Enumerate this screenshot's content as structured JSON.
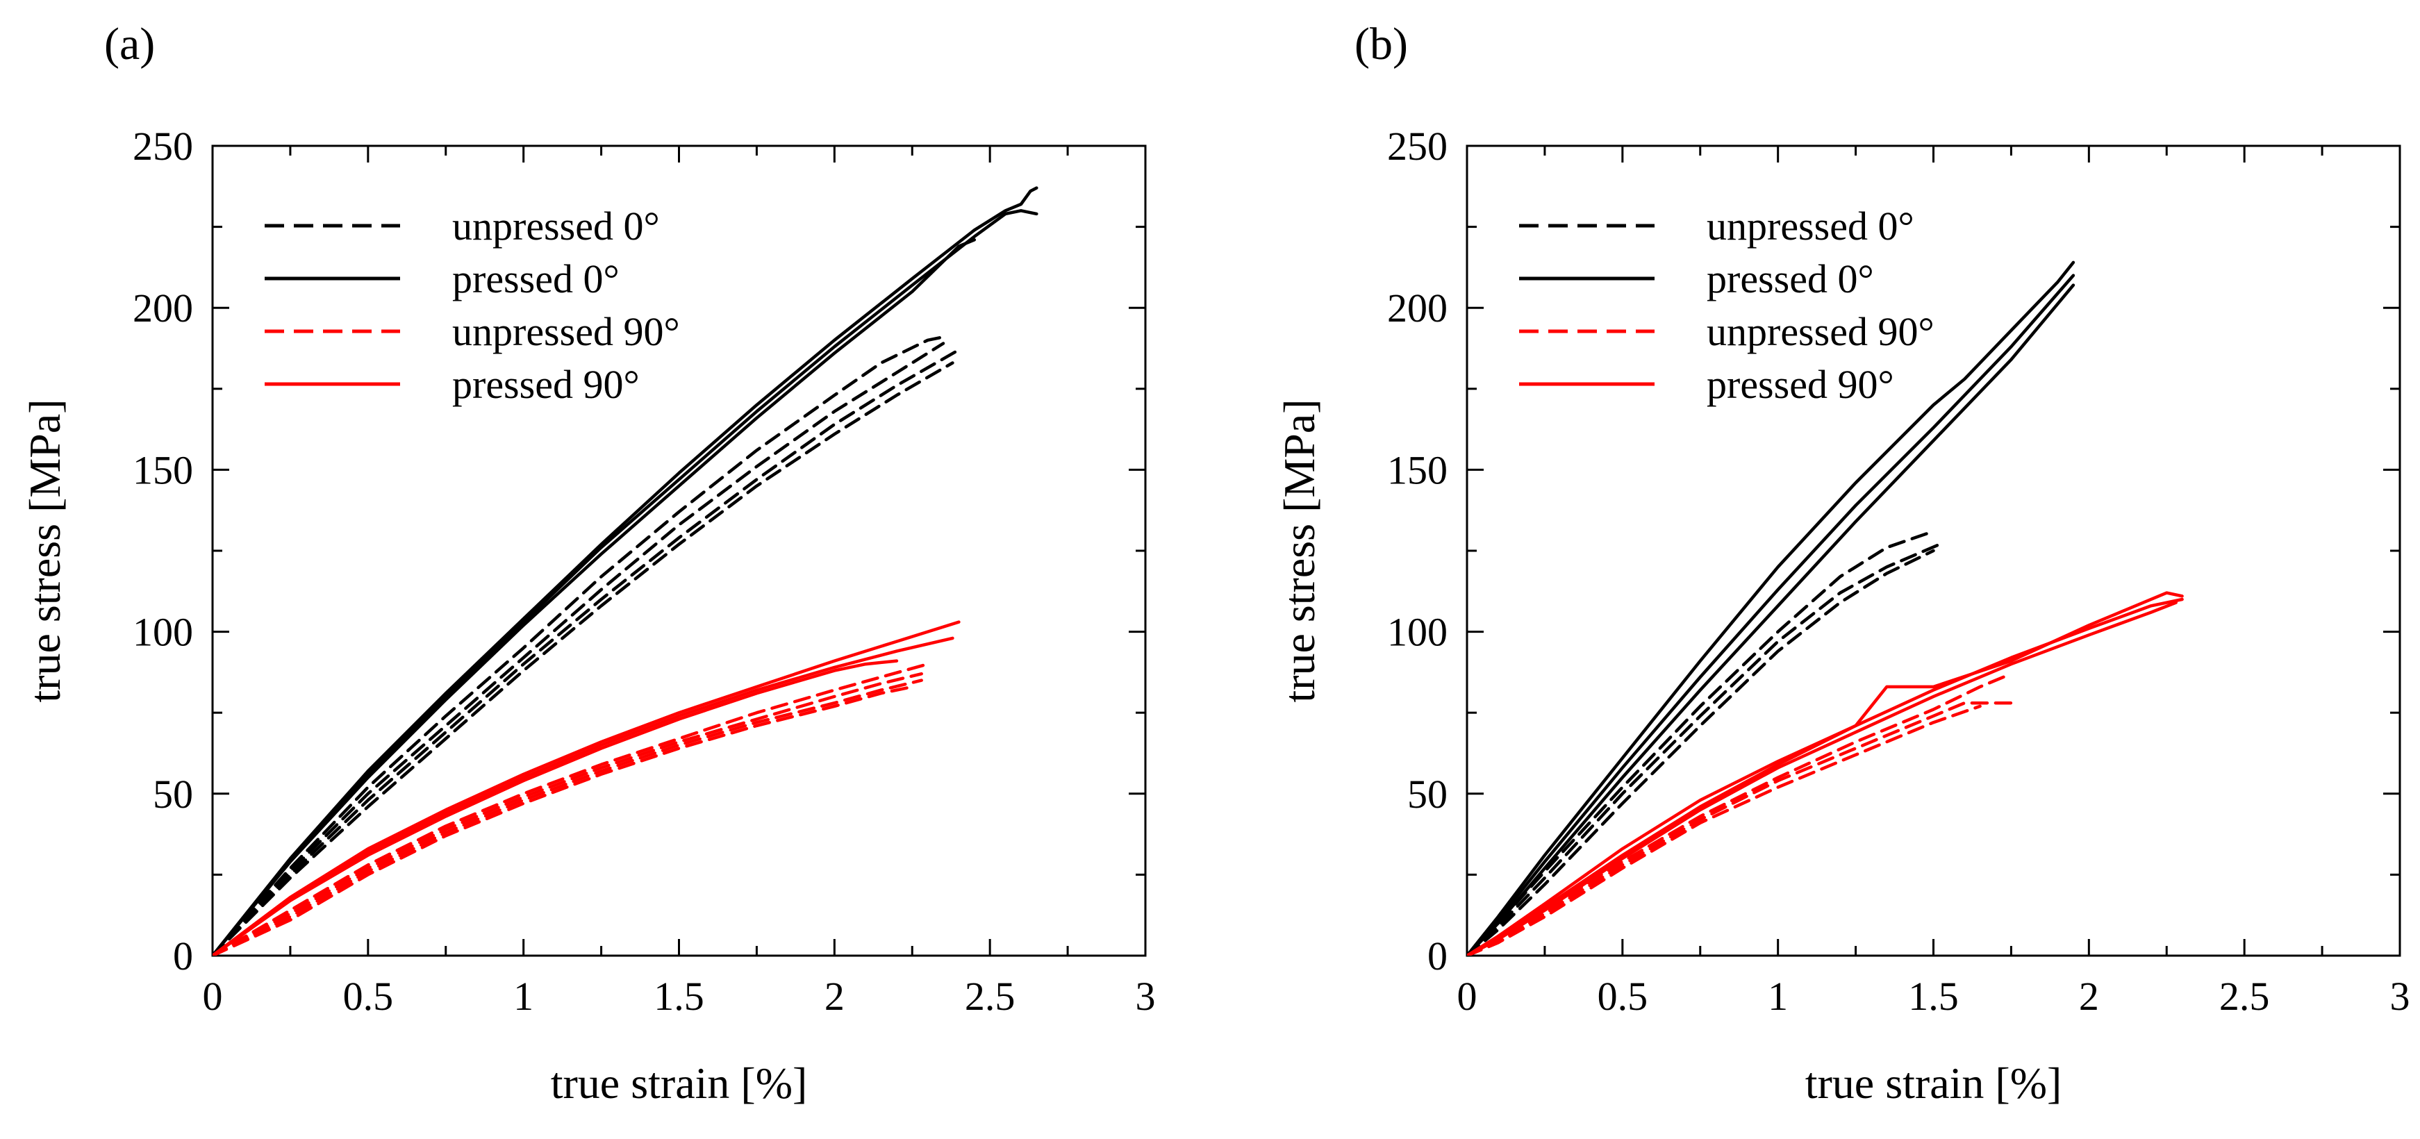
{
  "colors": {
    "black": "#000000",
    "red": "#ff0000",
    "background": "#ffffff"
  },
  "chart_data": [
    {
      "type": "line",
      "panel_label": "(a)",
      "xlabel": "true strain [%]",
      "ylabel": "true stress [MPa]",
      "xlim": [
        0,
        3
      ],
      "ylim": [
        0,
        250
      ],
      "xticks": [
        0,
        0.5,
        1,
        1.5,
        2,
        2.5,
        3
      ],
      "xtick_labels": [
        "0",
        "0.5",
        "1",
        "1.5",
        "2",
        "2.5",
        "3"
      ],
      "yticks": [
        0,
        50,
        100,
        150,
        200,
        250
      ],
      "ytick_labels": [
        "0",
        "50",
        "100",
        "150",
        "200",
        "250"
      ],
      "grid": false,
      "legend_position": "top-left",
      "legend": [
        {
          "label": "unpressed 0°",
          "color": "#000000",
          "style": "dashed"
        },
        {
          "label": "pressed 0°",
          "color": "#000000",
          "style": "solid"
        },
        {
          "label": "unpressed 90°",
          "color": "#ff0000",
          "style": "dashed"
        },
        {
          "label": "pressed 90°",
          "color": "#ff0000",
          "style": "solid"
        }
      ],
      "series": [
        {
          "group": "pressed 0°",
          "color": "#000000",
          "style": "solid",
          "x": [
            0,
            0.25,
            0.5,
            0.75,
            1.0,
            1.25,
            1.5,
            1.75,
            2.0,
            2.25,
            2.45,
            2.55,
            2.6,
            2.63,
            2.65
          ],
          "y": [
            0,
            30,
            57,
            81,
            104,
            127,
            149,
            170,
            190,
            209,
            224,
            230,
            232,
            236,
            237
          ]
        },
        {
          "group": "pressed 0°",
          "color": "#000000",
          "style": "solid",
          "x": [
            0,
            0.25,
            0.5,
            0.75,
            1.0,
            1.25,
            1.5,
            1.75,
            2.0,
            2.25,
            2.45,
            2.55,
            2.6,
            2.65
          ],
          "y": [
            0,
            29,
            56,
            80,
            103,
            126,
            147,
            168,
            188,
            207,
            222,
            229,
            230,
            229
          ]
        },
        {
          "group": "pressed 0°",
          "color": "#000000",
          "style": "solid",
          "x": [
            0,
            0.25,
            0.5,
            0.75,
            1.0,
            1.25,
            1.5,
            1.75,
            2.0,
            2.25,
            2.4,
            2.45
          ],
          "y": [
            0,
            29,
            55,
            79,
            102,
            124,
            145,
            166,
            186,
            205,
            219,
            221
          ]
        },
        {
          "group": "unpressed 0°",
          "color": "#000000",
          "style": "dashed",
          "x": [
            0,
            0.25,
            0.5,
            0.75,
            1.0,
            1.25,
            1.5,
            1.75,
            2.0,
            2.15,
            2.3,
            2.35
          ],
          "y": [
            0,
            27,
            52,
            74,
            95,
            117,
            137,
            156,
            173,
            183,
            190,
            191
          ]
        },
        {
          "group": "unpressed 0°",
          "color": "#000000",
          "style": "dashed",
          "x": [
            0,
            0.25,
            0.5,
            0.75,
            1.0,
            1.25,
            1.5,
            1.75,
            2.0,
            2.2,
            2.35
          ],
          "y": [
            0,
            26,
            50,
            71,
            92,
            113,
            133,
            151,
            168,
            180,
            189
          ]
        },
        {
          "group": "unpressed 0°",
          "color": "#000000",
          "style": "dashed",
          "x": [
            0,
            0.25,
            0.5,
            0.75,
            1.0,
            1.25,
            1.5,
            1.75,
            2.0,
            2.2,
            2.4
          ],
          "y": [
            0,
            25,
            48,
            69,
            90,
            110,
            129,
            147,
            164,
            176,
            187
          ]
        },
        {
          "group": "unpressed 0°",
          "color": "#000000",
          "style": "dashed",
          "x": [
            0,
            0.25,
            0.5,
            0.75,
            1.0,
            1.25,
            1.5,
            1.75,
            2.0,
            2.2,
            2.38
          ],
          "y": [
            0,
            24,
            46,
            67,
            88,
            108,
            127,
            145,
            161,
            173,
            183
          ]
        },
        {
          "group": "pressed 90°",
          "color": "#ff0000",
          "style": "solid",
          "x": [
            0,
            0.25,
            0.5,
            0.75,
            1.0,
            1.25,
            1.5,
            1.75,
            2.0,
            2.2,
            2.4
          ],
          "y": [
            0,
            18,
            33,
            45,
            56,
            66,
            75,
            83,
            91,
            97,
            103
          ]
        },
        {
          "group": "pressed 90°",
          "color": "#ff0000",
          "style": "solid",
          "x": [
            0,
            0.25,
            0.5,
            0.75,
            1.0,
            1.25,
            1.5,
            1.75,
            2.0,
            2.2,
            2.38
          ],
          "y": [
            0,
            17,
            32,
            44,
            55,
            65,
            74,
            82,
            89,
            94,
            98
          ]
        },
        {
          "group": "pressed 90°",
          "color": "#ff0000",
          "style": "solid",
          "x": [
            0,
            0.25,
            0.5,
            0.75,
            1.0,
            1.25,
            1.5,
            1.75,
            2.0,
            2.1,
            2.2
          ],
          "y": [
            0,
            17,
            31,
            43,
            54,
            64,
            73,
            81,
            88,
            90,
            91
          ]
        },
        {
          "group": "unpressed 90°",
          "color": "#ff0000",
          "style": "dashed",
          "x": [
            0,
            0.25,
            0.5,
            0.75,
            1.0,
            1.25,
            1.5,
            1.75,
            2.0,
            2.15,
            2.3
          ],
          "y": [
            0,
            14,
            28,
            40,
            50,
            59,
            67,
            75,
            82,
            86,
            90
          ]
        },
        {
          "group": "unpressed 90°",
          "color": "#ff0000",
          "style": "dashed",
          "x": [
            0,
            0.25,
            0.5,
            0.75,
            1.0,
            1.25,
            1.5,
            1.75,
            2.0,
            2.15,
            2.28
          ],
          "y": [
            0,
            13,
            27,
            39,
            49,
            58,
            66,
            73,
            80,
            84,
            87
          ]
        },
        {
          "group": "unpressed 90°",
          "color": "#ff0000",
          "style": "dashed",
          "x": [
            0,
            0.25,
            0.5,
            0.75,
            1.0,
            1.25,
            1.5,
            1.75,
            2.0,
            2.15,
            2.28
          ],
          "y": [
            0,
            12,
            26,
            38,
            48,
            57,
            65,
            72,
            78,
            82,
            85
          ]
        },
        {
          "group": "unpressed 90°",
          "color": "#ff0000",
          "style": "dashed",
          "x": [
            0,
            0.25,
            0.5,
            0.75,
            1.0,
            1.25,
            1.5,
            1.75,
            2.0,
            2.15,
            2.25
          ],
          "y": [
            0,
            11,
            25,
            37,
            47,
            56,
            64,
            71,
            77,
            81,
            83
          ]
        }
      ]
    },
    {
      "type": "line",
      "panel_label": "(b)",
      "xlabel": "true strain [%]",
      "ylabel": "true stress [MPa]",
      "xlim": [
        0,
        3
      ],
      "ylim": [
        0,
        250
      ],
      "xticks": [
        0,
        0.5,
        1,
        1.5,
        2,
        2.5,
        3
      ],
      "xtick_labels": [
        "0",
        "0.5",
        "1",
        "1.5",
        "2",
        "2.5",
        "3"
      ],
      "yticks": [
        0,
        50,
        100,
        150,
        200,
        250
      ],
      "ytick_labels": [
        "0",
        "50",
        "100",
        "150",
        "200",
        "250"
      ],
      "grid": false,
      "legend_position": "top-left",
      "legend": [
        {
          "label": "unpressed 0°",
          "color": "#000000",
          "style": "dashed"
        },
        {
          "label": "pressed 0°",
          "color": "#000000",
          "style": "solid"
        },
        {
          "label": "unpressed 90°",
          "color": "#ff0000",
          "style": "dashed"
        },
        {
          "label": "pressed 90°",
          "color": "#ff0000",
          "style": "solid"
        }
      ],
      "series": [
        {
          "group": "pressed 0°",
          "color": "#000000",
          "style": "solid",
          "x": [
            0,
            0.1,
            0.25,
            0.5,
            0.75,
            1.0,
            1.25,
            1.5,
            1.6,
            1.75,
            1.9,
            1.95
          ],
          "y": [
            0,
            12,
            31,
            61,
            91,
            120,
            146,
            170,
            178,
            193,
            208,
            214
          ]
        },
        {
          "group": "pressed 0°",
          "color": "#000000",
          "style": "solid",
          "x": [
            0,
            0.1,
            0.25,
            0.5,
            0.75,
            1.0,
            1.25,
            1.5,
            1.75,
            1.95
          ],
          "y": [
            0,
            11,
            29,
            58,
            86,
            113,
            139,
            163,
            188,
            210
          ]
        },
        {
          "group": "pressed 0°",
          "color": "#000000",
          "style": "solid",
          "x": [
            0,
            0.1,
            0.25,
            0.5,
            0.75,
            1.0,
            1.25,
            1.5,
            1.75,
            1.95
          ],
          "y": [
            0,
            10,
            27,
            55,
            82,
            108,
            134,
            159,
            184,
            207
          ]
        },
        {
          "group": "unpressed 0°",
          "color": "#000000",
          "style": "dashed",
          "x": [
            0,
            0.1,
            0.25,
            0.5,
            0.75,
            1.0,
            1.2,
            1.35,
            1.5
          ],
          "y": [
            0,
            10,
            26,
            52,
            77,
            100,
            117,
            126,
            131
          ]
        },
        {
          "group": "unpressed 0°",
          "color": "#000000",
          "style": "dashed",
          "x": [
            0,
            0.1,
            0.25,
            0.5,
            0.75,
            1.0,
            1.2,
            1.35,
            1.52
          ],
          "y": [
            0,
            9,
            24,
            50,
            74,
            97,
            112,
            120,
            127
          ]
        },
        {
          "group": "unpressed 0°",
          "color": "#000000",
          "style": "dashed",
          "x": [
            0,
            0.1,
            0.25,
            0.5,
            0.75,
            1.0,
            1.2,
            1.35,
            1.5
          ],
          "y": [
            0,
            8,
            22,
            47,
            71,
            94,
            109,
            118,
            125
          ]
        },
        {
          "group": "pressed 90°",
          "color": "#ff0000",
          "style": "solid",
          "x": [
            0,
            0.1,
            0.25,
            0.5,
            0.75,
            1.0,
            1.25,
            1.35,
            1.5,
            1.75,
            2.0,
            2.25,
            2.3
          ],
          "y": [
            0,
            6,
            16,
            33,
            48,
            60,
            71,
            83,
            83,
            91,
            102,
            112,
            111
          ]
        },
        {
          "group": "pressed 90°",
          "color": "#ff0000",
          "style": "solid",
          "x": [
            0,
            0.1,
            0.25,
            0.5,
            0.75,
            1.0,
            1.25,
            1.5,
            1.75,
            2.0,
            2.2,
            2.3
          ],
          "y": [
            0,
            5,
            15,
            31,
            46,
            59,
            71,
            82,
            92,
            101,
            108,
            110
          ]
        },
        {
          "group": "pressed 90°",
          "color": "#ff0000",
          "style": "solid",
          "x": [
            0,
            0.1,
            0.25,
            0.5,
            0.75,
            1.0,
            1.25,
            1.5,
            1.75,
            2.0,
            2.2,
            2.28
          ],
          "y": [
            0,
            5,
            14,
            30,
            45,
            58,
            69,
            80,
            90,
            99,
            106,
            109
          ]
        },
        {
          "group": "unpressed 90°",
          "color": "#ff0000",
          "style": "dashed",
          "x": [
            0,
            0.1,
            0.25,
            0.5,
            0.75,
            1.0,
            1.25,
            1.5,
            1.65,
            1.75
          ],
          "y": [
            0,
            5,
            14,
            29,
            43,
            55,
            66,
            76,
            83,
            87
          ]
        },
        {
          "group": "unpressed 90°",
          "color": "#ff0000",
          "style": "dashed",
          "x": [
            0,
            0.1,
            0.25,
            0.5,
            0.75,
            1.0,
            1.25,
            1.5,
            1.6,
            1.75
          ],
          "y": [
            0,
            4,
            13,
            28,
            42,
            54,
            64,
            74,
            78,
            78
          ]
        },
        {
          "group": "unpressed 90°",
          "color": "#ff0000",
          "style": "dashed",
          "x": [
            0,
            0.1,
            0.25,
            0.5,
            0.75,
            1.0,
            1.25,
            1.5,
            1.65
          ],
          "y": [
            0,
            4,
            12,
            27,
            41,
            52,
            62,
            72,
            77
          ]
        }
      ]
    }
  ]
}
